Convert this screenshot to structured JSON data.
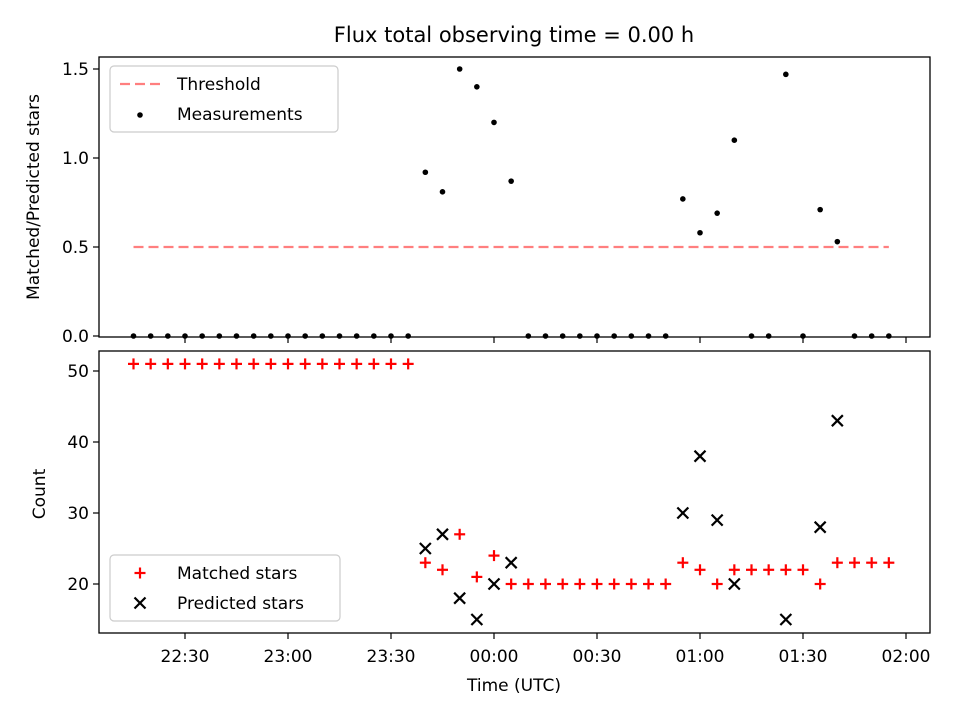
{
  "chart_data": [
    {
      "type": "scatter",
      "title": "Flux total observing time = 0.00 h",
      "xlabel": "",
      "ylabel": "Matched/Predicted stars",
      "ylim": [
        0,
        1.58
      ],
      "yticks": [
        "0.0",
        "0.5",
        "1.0",
        "1.5"
      ],
      "ytick_values": [
        0,
        0.5,
        1.0,
        1.5
      ],
      "legend_position": "top-left",
      "threshold": {
        "name": "Threshold",
        "value": 0.5,
        "color": "#ff7f7f",
        "x_start": "22:15",
        "x_end": "01:55"
      },
      "series": [
        {
          "name": "Measurements",
          "marker": "dot",
          "color": "#000000",
          "x": [
            "22:15",
            "22:20",
            "22:25",
            "22:30",
            "22:35",
            "22:40",
            "22:45",
            "22:50",
            "22:55",
            "23:00",
            "23:05",
            "23:10",
            "23:15",
            "23:20",
            "23:25",
            "23:30",
            "23:35",
            "23:40",
            "23:45",
            "23:50",
            "23:55",
            "00:00",
            "00:05",
            "00:10",
            "00:15",
            "00:20",
            "00:25",
            "00:30",
            "00:35",
            "00:40",
            "00:45",
            "00:50",
            "00:55",
            "01:00",
            "01:05",
            "01:10",
            "01:15",
            "01:20",
            "01:25",
            "01:30",
            "01:35",
            "01:40",
            "01:45",
            "01:50",
            "01:55"
          ],
          "y": [
            0,
            0,
            0,
            0,
            0,
            0,
            0,
            0,
            0,
            0,
            0,
            0,
            0,
            0,
            0,
            0,
            0,
            0.92,
            0.81,
            1.5,
            1.4,
            1.2,
            0.87,
            0,
            0,
            0,
            0,
            0,
            0,
            0,
            0,
            0,
            0.77,
            0.58,
            0.69,
            1.1,
            0,
            0,
            1.47,
            0,
            0.71,
            0.53,
            0,
            0,
            0
          ]
        }
      ]
    },
    {
      "type": "scatter",
      "title": "",
      "xlabel": "Time (UTC)",
      "ylabel": "Count",
      "ylim": [
        13,
        53
      ],
      "yticks": [
        "20",
        "30",
        "40",
        "50"
      ],
      "ytick_values": [
        20,
        30,
        40,
        50
      ],
      "xticks": [
        "22:30",
        "23:00",
        "23:30",
        "00:00",
        "00:30",
        "01:00",
        "01:30",
        "02:00"
      ],
      "xlim": [
        "22:05",
        "02:05"
      ],
      "legend_position": "bottom-left",
      "series": [
        {
          "name": "Matched stars",
          "marker": "plus",
          "color": "#ff0000",
          "x": [
            "22:15",
            "22:20",
            "22:25",
            "22:30",
            "22:35",
            "22:40",
            "22:45",
            "22:50",
            "22:55",
            "23:00",
            "23:05",
            "23:10",
            "23:15",
            "23:20",
            "23:25",
            "23:30",
            "23:35",
            "23:40",
            "23:45",
            "23:50",
            "23:55",
            "00:00",
            "00:05",
            "00:10",
            "00:15",
            "00:20",
            "00:25",
            "00:30",
            "00:35",
            "00:40",
            "00:45",
            "00:50",
            "00:55",
            "01:00",
            "01:05",
            "01:10",
            "01:15",
            "01:20",
            "01:25",
            "01:30",
            "01:35",
            "01:40",
            "01:45",
            "01:50",
            "01:55"
          ],
          "y": [
            51,
            51,
            51,
            51,
            51,
            51,
            51,
            51,
            51,
            51,
            51,
            51,
            51,
            51,
            51,
            51,
            51,
            23,
            22,
            27,
            21,
            24,
            20,
            20,
            20,
            20,
            20,
            20,
            20,
            20,
            20,
            20,
            23,
            22,
            20,
            22,
            22,
            22,
            22,
            22,
            20,
            23,
            23,
            23,
            23
          ]
        },
        {
          "name": "Predicted stars",
          "marker": "x",
          "color": "#000000",
          "x": [
            "23:40",
            "23:45",
            "23:50",
            "23:55",
            "00:00",
            "00:05",
            "00:55",
            "01:00",
            "01:05",
            "01:10",
            "01:25",
            "01:35",
            "01:40"
          ],
          "y": [
            25,
            27,
            18,
            15,
            20,
            23,
            30,
            38,
            29,
            20,
            15,
            28,
            43
          ]
        }
      ]
    }
  ]
}
